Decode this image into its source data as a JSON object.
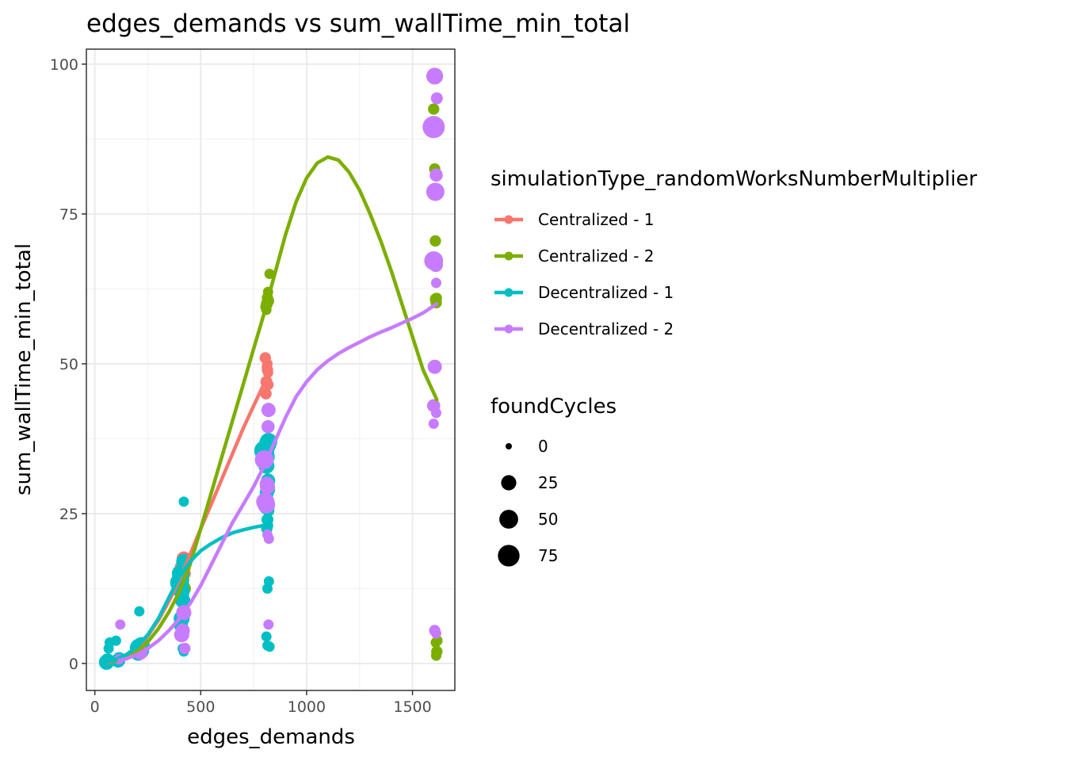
{
  "chart_data": {
    "type": "scatter",
    "title": "edges_demands  vs  sum_wallTime_min_total",
    "xlabel": "edges_demands",
    "ylabel": "sum_wallTime_min_total",
    "xlim": [
      -40,
      1700
    ],
    "ylim": [
      -4.5,
      102.5
    ],
    "x_ticks": [
      0,
      500,
      1000,
      1500
    ],
    "x_tick_labels": [
      "0",
      "500",
      "1000",
      "1500"
    ],
    "y_ticks": [
      0,
      25,
      50,
      75,
      100
    ],
    "y_tick_labels": [
      "0",
      "25",
      "50",
      "75",
      "100"
    ],
    "grid": true,
    "legend_position": "right",
    "color_legend": {
      "title": "simulationType_randomWorksNumberMultiplier",
      "entries": [
        {
          "label": "Centralized - 1",
          "color": "#F8766D"
        },
        {
          "label": "Centralized - 2",
          "color": "#7CAE00"
        },
        {
          "label": "Decentralized - 1",
          "color": "#00BFC4"
        },
        {
          "label": "Decentralized - 2",
          "color": "#C77CFF"
        }
      ]
    },
    "size_legend": {
      "title": "foundCycles",
      "entries": [
        {
          "label": "0",
          "value": 0
        },
        {
          "label": "25",
          "value": 25
        },
        {
          "label": "50",
          "value": 50
        },
        {
          "label": "75",
          "value": 75
        }
      ]
    },
    "series": [
      {
        "name": "Centralized - 1",
        "color": "#F8766D",
        "points": [
          [
            60,
            0.3,
            5
          ],
          [
            65,
            0.5,
            10
          ],
          [
            110,
            0.8,
            8
          ],
          [
            210,
            2.5,
            20
          ],
          [
            215,
            3.0,
            25
          ],
          [
            410,
            13.0,
            25
          ],
          [
            415,
            16.0,
            30
          ],
          [
            420,
            17.5,
            20
          ],
          [
            425,
            15.0,
            10
          ],
          [
            805,
            51.0,
            8
          ],
          [
            810,
            47.0,
            10
          ],
          [
            815,
            49.0,
            8
          ],
          [
            815,
            50.0,
            5
          ],
          [
            818,
            48.5,
            5
          ],
          [
            820,
            46.5,
            5
          ],
          [
            808,
            45.0,
            8
          ],
          [
            812,
            49.5,
            5
          ]
        ],
        "smooth": [
          [
            60,
            0.2
          ],
          [
            100,
            0.5
          ],
          [
            150,
            1.2
          ],
          [
            200,
            2.6
          ],
          [
            250,
            4.6
          ],
          [
            300,
            7.2
          ],
          [
            350,
            10.4
          ],
          [
            400,
            14.0
          ],
          [
            450,
            18.2
          ],
          [
            500,
            22.5
          ],
          [
            550,
            26.6
          ],
          [
            600,
            30.8
          ],
          [
            650,
            35.0
          ],
          [
            700,
            39.2
          ],
          [
            750,
            43.0
          ],
          [
            810,
            47.5
          ]
        ]
      },
      {
        "name": "Centralized - 2",
        "color": "#7CAE00",
        "points": [
          [
            60,
            0.5,
            5
          ],
          [
            110,
            0.8,
            5
          ],
          [
            215,
            2.5,
            20
          ],
          [
            410,
            14.0,
            25
          ],
          [
            420,
            12.5,
            20
          ],
          [
            808,
            59.5,
            8
          ],
          [
            812,
            60.0,
            10
          ],
          [
            815,
            61.0,
            8
          ],
          [
            820,
            60.5,
            8
          ],
          [
            818,
            62.0,
            5
          ],
          [
            825,
            65.0,
            5
          ],
          [
            810,
            59.0,
            5
          ],
          [
            1600,
            92.5,
            8
          ],
          [
            1605,
            82.5,
            8
          ],
          [
            1608,
            70.5,
            8
          ],
          [
            1610,
            60.8,
            10
          ],
          [
            1612,
            60.2,
            8
          ],
          [
            1615,
            61.0,
            5
          ],
          [
            1610,
            3.5,
            5
          ],
          [
            1615,
            2.0,
            8
          ],
          [
            1612,
            1.3,
            5
          ],
          [
            1618,
            3.8,
            5
          ]
        ],
        "smooth": [
          [
            60,
            0.3
          ],
          [
            100,
            0.5
          ],
          [
            150,
            1.0
          ],
          [
            200,
            2.0
          ],
          [
            250,
            3.6
          ],
          [
            300,
            5.8
          ],
          [
            350,
            8.6
          ],
          [
            400,
            12.0
          ],
          [
            450,
            16.5
          ],
          [
            500,
            22.5
          ],
          [
            550,
            28.5
          ],
          [
            600,
            34.5
          ],
          [
            650,
            40.5
          ],
          [
            700,
            46.5
          ],
          [
            750,
            52.5
          ],
          [
            800,
            58.5
          ],
          [
            850,
            65.0
          ],
          [
            900,
            71.5
          ],
          [
            950,
            77.0
          ],
          [
            1000,
            81.0
          ],
          [
            1050,
            83.5
          ],
          [
            1100,
            84.5
          ],
          [
            1150,
            84.0
          ],
          [
            1200,
            82.0
          ],
          [
            1250,
            79.0
          ],
          [
            1300,
            75.0
          ],
          [
            1350,
            70.5
          ],
          [
            1400,
            65.5
          ],
          [
            1450,
            60.0
          ],
          [
            1500,
            54.5
          ],
          [
            1550,
            49.0
          ],
          [
            1615,
            44.0
          ]
        ]
      },
      {
        "name": "Decentralized - 1",
        "color": "#00BFC4",
        "points": [
          [
            55,
            0.2,
            25
          ],
          [
            60,
            0.5,
            20
          ],
          [
            65,
            2.5,
            5
          ],
          [
            70,
            3.5,
            5
          ],
          [
            100,
            3.8,
            5
          ],
          [
            110,
            0.5,
            20
          ],
          [
            115,
            0.8,
            15
          ],
          [
            210,
            8.7,
            5
          ],
          [
            205,
            1.8,
            30
          ],
          [
            215,
            2.2,
            40
          ],
          [
            220,
            3.0,
            35
          ],
          [
            210,
            2.6,
            50
          ],
          [
            400,
            13.5,
            50
          ],
          [
            405,
            15.0,
            40
          ],
          [
            410,
            12.0,
            30
          ],
          [
            415,
            10.5,
            25
          ],
          [
            420,
            17.0,
            25
          ],
          [
            410,
            7.5,
            30
          ],
          [
            415,
            2.5,
            5
          ],
          [
            420,
            2.0,
            5
          ],
          [
            405,
            6.5,
            20
          ],
          [
            420,
            27.0,
            5
          ],
          [
            410,
            14.5,
            20
          ],
          [
            800,
            35.5,
            60
          ],
          [
            805,
            34.5,
            50
          ],
          [
            810,
            33.0,
            30
          ],
          [
            815,
            36.5,
            40
          ],
          [
            820,
            37.0,
            40
          ],
          [
            818,
            30.5,
            20
          ],
          [
            812,
            28.5,
            20
          ],
          [
            808,
            26.0,
            15
          ],
          [
            815,
            24.0,
            10
          ],
          [
            812,
            22.5,
            8
          ],
          [
            820,
            25.5,
            10
          ],
          [
            818,
            23.0,
            5
          ],
          [
            815,
            12.5,
            5
          ],
          [
            822,
            13.7,
            5
          ],
          [
            810,
            4.5,
            5
          ],
          [
            815,
            3.0,
            5
          ],
          [
            825,
            2.8,
            5
          ],
          [
            820,
            29.0,
            15
          ]
        ],
        "smooth": [
          [
            60,
            0.3
          ],
          [
            100,
            0.7
          ],
          [
            150,
            1.5
          ],
          [
            200,
            2.8
          ],
          [
            250,
            4.8
          ],
          [
            300,
            7.5
          ],
          [
            350,
            11.0
          ],
          [
            400,
            14.5
          ],
          [
            450,
            17.0
          ],
          [
            500,
            18.8
          ],
          [
            550,
            20.0
          ],
          [
            600,
            21.0
          ],
          [
            650,
            21.8
          ],
          [
            700,
            22.3
          ],
          [
            750,
            22.7
          ],
          [
            820,
            23.2
          ]
        ]
      },
      {
        "name": "Decentralized - 2",
        "color": "#C77CFF",
        "points": [
          [
            115,
            0.7,
            5
          ],
          [
            120,
            6.5,
            5
          ],
          [
            215,
            1.8,
            20
          ],
          [
            410,
            4.8,
            25
          ],
          [
            415,
            5.5,
            20
          ],
          [
            420,
            8.5,
            25
          ],
          [
            425,
            2.5,
            8
          ],
          [
            800,
            34.0,
            50
          ],
          [
            805,
            27.0,
            45
          ],
          [
            810,
            26.5,
            40
          ],
          [
            815,
            29.5,
            25
          ],
          [
            820,
            42.3,
            20
          ],
          [
            818,
            39.5,
            15
          ],
          [
            812,
            30.0,
            20
          ],
          [
            822,
            20.8,
            5
          ],
          [
            815,
            21.5,
            5
          ],
          [
            820,
            6.5,
            5
          ],
          [
            1600,
            89.5,
            80
          ],
          [
            1605,
            98.0,
            35
          ],
          [
            1615,
            94.3,
            10
          ],
          [
            1608,
            78.7,
            45
          ],
          [
            1612,
            81.5,
            15
          ],
          [
            1600,
            67.2,
            50
          ],
          [
            1610,
            66.5,
            20
          ],
          [
            1612,
            63.5,
            5
          ],
          [
            1605,
            49.5,
            20
          ],
          [
            1600,
            43.0,
            15
          ],
          [
            1612,
            41.8,
            5
          ],
          [
            1600,
            40.0,
            5
          ],
          [
            1605,
            5.5,
            8
          ],
          [
            1612,
            5.0,
            5
          ]
        ],
        "smooth": [
          [
            115,
            0.5
          ],
          [
            150,
            0.8
          ],
          [
            200,
            1.5
          ],
          [
            250,
            2.5
          ],
          [
            300,
            3.8
          ],
          [
            350,
            5.5
          ],
          [
            400,
            7.5
          ],
          [
            450,
            10.0
          ],
          [
            500,
            13.0
          ],
          [
            550,
            16.5
          ],
          [
            600,
            20.0
          ],
          [
            650,
            23.5
          ],
          [
            700,
            26.5
          ],
          [
            750,
            29.5
          ],
          [
            800,
            33.0
          ],
          [
            850,
            37.0
          ],
          [
            900,
            41.0
          ],
          [
            950,
            44.5
          ],
          [
            1000,
            47.0
          ],
          [
            1050,
            49.0
          ],
          [
            1100,
            50.5
          ],
          [
            1150,
            51.7
          ],
          [
            1200,
            52.7
          ],
          [
            1250,
            53.6
          ],
          [
            1300,
            54.5
          ],
          [
            1350,
            55.3
          ],
          [
            1400,
            56.0
          ],
          [
            1450,
            56.8
          ],
          [
            1500,
            57.6
          ],
          [
            1550,
            58.5
          ],
          [
            1615,
            60.0
          ]
        ]
      }
    ]
  }
}
